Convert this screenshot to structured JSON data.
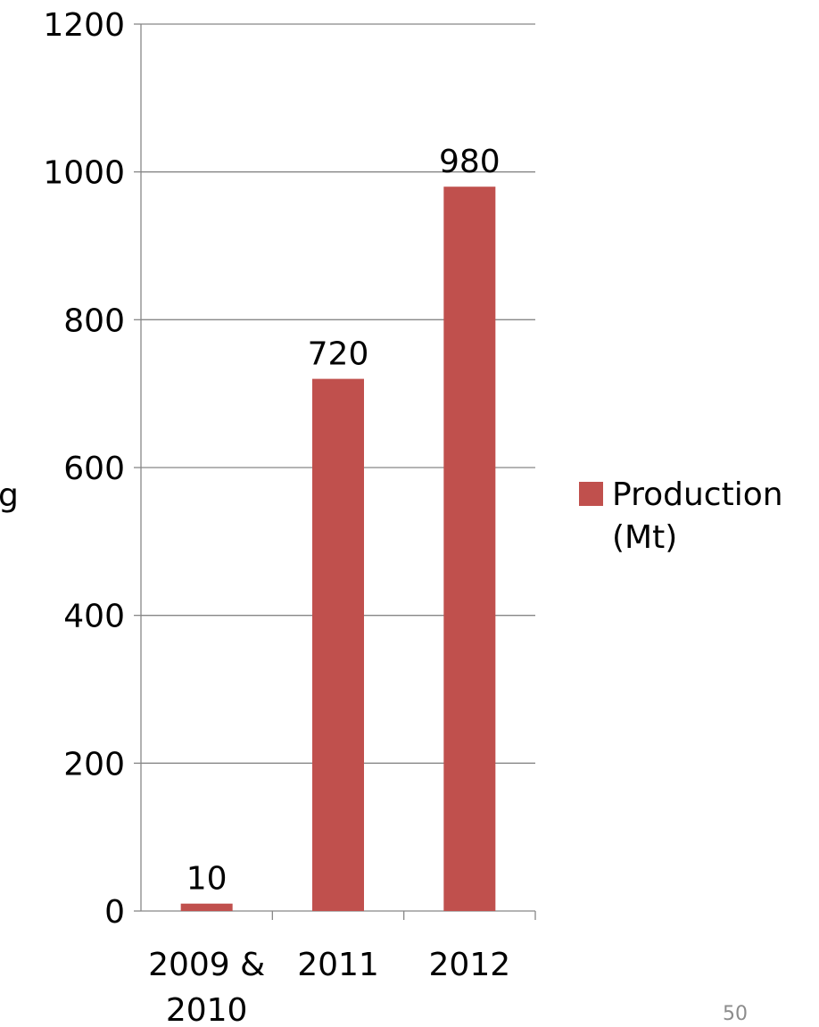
{
  "chart_data": {
    "type": "bar",
    "categories": [
      [
        "2009 &",
        "2010"
      ],
      [
        "2011"
      ],
      [
        "2012"
      ]
    ],
    "series": [
      {
        "name": "Production (Mt)",
        "legend_lines": [
          "Production",
          "(Mt)"
        ],
        "values": [
          10,
          720,
          980
        ],
        "color": "#C0504D"
      }
    ],
    "ylim": [
      0,
      1200
    ],
    "yticks": [
      0,
      200,
      400,
      600,
      800,
      1000,
      1200
    ],
    "ylabel_visible_fragment": "g",
    "grid": true,
    "legend_position": "right"
  },
  "slide_number": "50"
}
